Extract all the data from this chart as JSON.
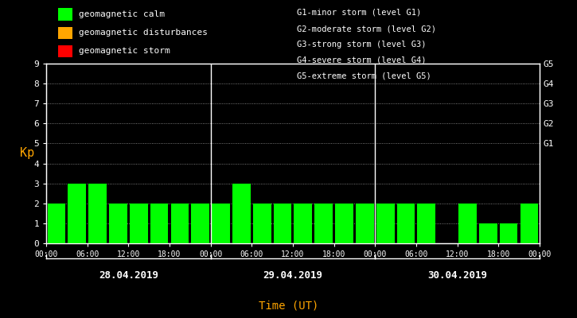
{
  "background_color": "#000000",
  "plot_bg_color": "#000000",
  "bar_color": "#00ff00",
  "text_color": "#ffffff",
  "orange_color": "#ffa500",
  "kp_values": [
    2,
    3,
    3,
    2,
    2,
    2,
    2,
    2,
    2,
    3,
    2,
    2,
    2,
    2,
    2,
    2,
    2,
    2,
    2,
    0,
    2,
    1,
    1,
    2
  ],
  "ylim": [
    0,
    9
  ],
  "yticks": [
    0,
    1,
    2,
    3,
    4,
    5,
    6,
    7,
    8,
    9
  ],
  "g_labels": [
    "G5",
    "G4",
    "G3",
    "G2",
    "G1"
  ],
  "g_positions": [
    9,
    8,
    7,
    6,
    5
  ],
  "day_labels": [
    "28.04.2019",
    "29.04.2019",
    "30.04.2019"
  ],
  "time_tick_labels": [
    "00:00",
    "06:00",
    "12:00",
    "18:00",
    "00:00",
    "06:00",
    "12:00",
    "18:00",
    "00:00",
    "06:00",
    "12:00",
    "18:00",
    "00:00"
  ],
  "legend_items": [
    {
      "label": "geomagnetic calm",
      "color": "#00ff00"
    },
    {
      "label": "geomagnetic disturbances",
      "color": "#ffa500"
    },
    {
      "label": "geomagnetic storm",
      "color": "#ff0000"
    }
  ],
  "storm_text": [
    "G1-minor storm (level G1)",
    "G2-moderate storm (level G2)",
    "G3-strong storm (level G3)",
    "G4-severe storm (level G4)",
    "G5-extreme storm (level G5)"
  ],
  "ylabel": "Kp",
  "xlabel": "Time (UT)"
}
